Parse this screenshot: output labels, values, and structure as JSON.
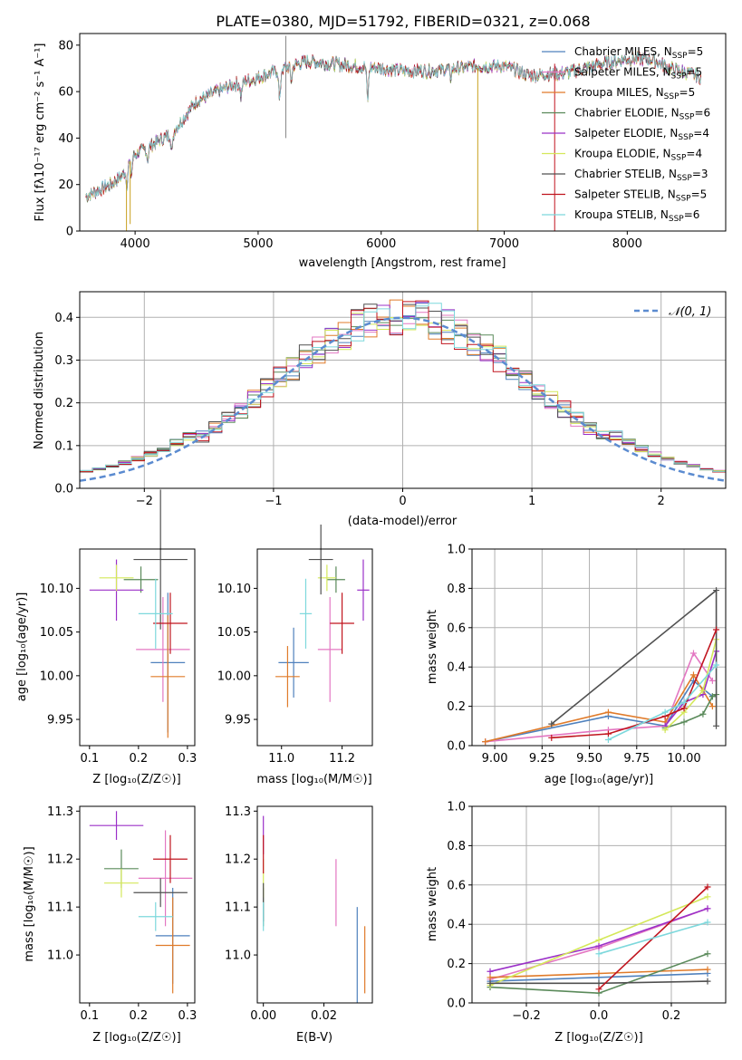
{
  "colors": {
    "chabrier_miles": "#4f81bd",
    "salpeter_miles": "#e377c2",
    "kroupa_miles": "#e07b2a",
    "chabrier_elodie": "#5a8a5a",
    "salpeter_elodie": "#9b30c8",
    "kroupa_elodie": "#d4e85a",
    "chabrier_stelib": "#505050",
    "salpeter_stelib": "#c0141e",
    "kroupa_stelib": "#7dd8dc",
    "normal": "#5b8bd0"
  },
  "chart_data": [
    {
      "id": "spectrum",
      "type": "line",
      "title": "PLATE=0380, MJD=51792, FIBERID=0321, z=0.068",
      "xlabel": "wavelength [Angstrom, rest frame]",
      "ylabel": "Flux [fλ10⁻¹⁷ erg cm⁻² s⁻¹ A⁻¹]",
      "xlim": [
        3550,
        8800
      ],
      "ylim": [
        0,
        85
      ],
      "xticks": [
        4000,
        5000,
        6000,
        7000,
        8000
      ],
      "yticks": [
        0,
        20,
        40,
        60,
        80
      ],
      "continuum": [
        [
          3600,
          15
        ],
        [
          3800,
          20
        ],
        [
          3900,
          24
        ],
        [
          3950,
          30
        ],
        [
          4000,
          33
        ],
        [
          4100,
          36
        ],
        [
          4300,
          42
        ],
        [
          4500,
          56
        ],
        [
          4800,
          63
        ],
        [
          5000,
          66
        ],
        [
          5200,
          70
        ],
        [
          5400,
          73
        ],
        [
          5600,
          72
        ],
        [
          5800,
          71
        ],
        [
          6000,
          70
        ],
        [
          6200,
          69
        ],
        [
          6400,
          69
        ],
        [
          6600,
          70
        ],
        [
          6800,
          71
        ],
        [
          7000,
          71
        ],
        [
          7200,
          67
        ],
        [
          7500,
          68
        ],
        [
          7800,
          72
        ],
        [
          8000,
          74
        ],
        [
          8200,
          74
        ],
        [
          8350,
          70
        ],
        [
          8500,
          68
        ],
        [
          8600,
          66
        ]
      ],
      "legend_position": "upper right",
      "series": [
        {
          "name": "Chabrier MILES, N",
          "ssp": "5"
        },
        {
          "name": "Salpeter MILES, N",
          "ssp": "5"
        },
        {
          "name": "Kroupa MILES, N",
          "ssp": "5"
        },
        {
          "name": "Chabrier ELODIE, N",
          "ssp": "6"
        },
        {
          "name": "Salpeter ELODIE, N",
          "ssp": "4"
        },
        {
          "name": "Kroupa ELODIE, N",
          "ssp": "4"
        },
        {
          "name": "Chabrier STELIB, N",
          "ssp": "3"
        },
        {
          "name": "Salpeter STELIB, N",
          "ssp": "5"
        },
        {
          "name": "Kroupa STELIB, N",
          "ssp": "6"
        }
      ]
    },
    {
      "id": "residuals",
      "type": "line",
      "xlabel": "(data-model)/error",
      "ylabel": "Normed distribution",
      "xlim": [
        -2.5,
        2.5
      ],
      "ylim": [
        0,
        0.46
      ],
      "xticks": [
        -2,
        -1,
        0,
        1,
        2
      ],
      "yticks": [
        0.0,
        0.1,
        0.2,
        0.3,
        0.4
      ],
      "grid": true,
      "normal_label": "𝒩(0, 1)",
      "bin_width": 0.1
    },
    {
      "id": "age_vs_Z",
      "type": "scatter",
      "xlabel": "Z [log₁₀(Z/Z☉)]",
      "ylabel": "age  [log₁₀(age/yr)]",
      "xlim": [
        0.08,
        0.315
      ],
      "ylim": [
        9.92,
        10.145
      ],
      "xticks": [
        0.1,
        0.2,
        0.3
      ],
      "yticks": [
        9.95,
        10.0,
        10.05,
        10.1
      ],
      "points": [
        {
          "x": 0.26,
          "y": 10.015,
          "xerr": 0.035,
          "yerr": 0.08
        },
        {
          "x": 0.25,
          "y": 10.03,
          "xerr": 0.055,
          "yerr": 0.06
        },
        {
          "x": 0.26,
          "y": 9.999,
          "xerr": 0.035,
          "yerr": 0.07
        },
        {
          "x": 0.205,
          "y": 10.11,
          "xerr": 0.035,
          "yerr": 0.015
        },
        {
          "x": 0.155,
          "y": 10.098,
          "xerr": 0.055,
          "yerr": 0.035
        },
        {
          "x": 0.155,
          "y": 10.112,
          "xerr": 0.035,
          "yerr": 0.015
        },
        {
          "x": 0.245,
          "y": 10.133,
          "xerr": 0.055,
          "yerr": 0.08
        },
        {
          "x": 0.265,
          "y": 10.06,
          "xerr": 0.035,
          "yerr": 0.035
        },
        {
          "x": 0.235,
          "y": 10.071,
          "xerr": 0.035,
          "yerr": 0.04
        }
      ]
    },
    {
      "id": "age_vs_mass",
      "type": "scatter",
      "xlabel": "mass [log₁₀(M/M☉)]",
      "ylabel": "",
      "xlim": [
        10.92,
        11.3
      ],
      "ylim": [
        9.92,
        10.145
      ],
      "xticks": [
        11.0,
        11.2
      ],
      "yticks": [
        9.95,
        10.0,
        10.05,
        10.1
      ],
      "points": [
        {
          "x": 11.04,
          "y": 10.015,
          "xerr": 0.05,
          "yerr": 0.04
        },
        {
          "x": 11.16,
          "y": 10.03,
          "xerr": 0.04,
          "yerr": 0.06
        },
        {
          "x": 11.02,
          "y": 9.999,
          "xerr": 0.04,
          "yerr": 0.035
        },
        {
          "x": 11.18,
          "y": 10.11,
          "xerr": 0.03,
          "yerr": 0.015
        },
        {
          "x": 11.27,
          "y": 10.098,
          "xerr": 0.02,
          "yerr": 0.035
        },
        {
          "x": 11.15,
          "y": 10.112,
          "xerr": 0.03,
          "yerr": 0.015
        },
        {
          "x": 11.13,
          "y": 10.133,
          "xerr": 0.04,
          "yerr": 0.04
        },
        {
          "x": 11.2,
          "y": 10.06,
          "xerr": 0.04,
          "yerr": 0.035
        },
        {
          "x": 11.08,
          "y": 10.071,
          "xerr": 0.02,
          "yerr": 0.04
        }
      ]
    },
    {
      "id": "weight_vs_age",
      "type": "line",
      "xlabel": "age  [log₁₀(age/yr)]",
      "ylabel": "mass weight",
      "xlim": [
        8.88,
        10.22
      ],
      "ylim": [
        0,
        1
      ],
      "xticks": [
        9.0,
        9.25,
        9.5,
        9.75,
        10.0
      ],
      "yticks": [
        0.0,
        0.2,
        0.4,
        0.6,
        0.8,
        1.0
      ],
      "grid": true,
      "series": [
        {
          "x": [
            8.95,
            9.6,
            9.9,
            10.05,
            10.15
          ],
          "y": [
            0.02,
            0.15,
            0.1,
            0.33,
            0.25
          ]
        },
        {
          "x": [
            8.95,
            9.6,
            9.9,
            10.05,
            10.15
          ],
          "y": [
            0.02,
            0.08,
            0.1,
            0.47,
            0.33
          ]
        },
        {
          "x": [
            8.95,
            9.6,
            9.9,
            10.05,
            10.15
          ],
          "y": [
            0.02,
            0.17,
            0.12,
            0.36,
            0.2
          ]
        },
        {
          "x": [
            9.9,
            10.0,
            10.1,
            10.15,
            10.17
          ],
          "y": [
            0.09,
            0.12,
            0.16,
            0.25,
            0.26
          ]
        },
        {
          "x": [
            9.9,
            10.0,
            10.1,
            10.17
          ],
          "y": [
            0.1,
            0.22,
            0.26,
            0.48
          ]
        },
        {
          "x": [
            9.9,
            10.0,
            10.1,
            10.17
          ],
          "y": [
            0.08,
            0.17,
            0.28,
            0.54
          ]
        },
        {
          "x": [
            9.3,
            10.17,
            10.17
          ],
          "y": [
            0.11,
            0.79,
            0.1
          ]
        },
        {
          "x": [
            9.3,
            9.6,
            9.9,
            10.0,
            10.17
          ],
          "y": [
            0.04,
            0.06,
            0.15,
            0.19,
            0.59
          ]
        },
        {
          "x": [
            9.6,
            9.9,
            10.0,
            10.17
          ],
          "y": [
            0.03,
            0.17,
            0.22,
            0.41
          ]
        }
      ]
    },
    {
      "id": "mass_vs_Z",
      "type": "scatter",
      "xlabel": "Z [log₁₀(Z/Z☉)]",
      "ylabel": "mass [log₁₀(M/M☉)]",
      "xlim": [
        0.08,
        0.315
      ],
      "ylim": [
        10.9,
        11.31
      ],
      "xticks": [
        0.1,
        0.2,
        0.3
      ],
      "yticks": [
        11.0,
        11.1,
        11.2,
        11.3
      ],
      "points": [
        {
          "x": 0.27,
          "y": 11.04,
          "xerr": 0.035,
          "yerr": 0.1
        },
        {
          "x": 0.255,
          "y": 11.16,
          "xerr": 0.055,
          "yerr": 0.1
        },
        {
          "x": 0.27,
          "y": 11.02,
          "xerr": 0.035,
          "yerr": 0.1
        },
        {
          "x": 0.165,
          "y": 11.18,
          "xerr": 0.035,
          "yerr": 0.04
        },
        {
          "x": 0.155,
          "y": 11.27,
          "xerr": 0.055,
          "yerr": 0.03
        },
        {
          "x": 0.165,
          "y": 11.15,
          "xerr": 0.035,
          "yerr": 0.03
        },
        {
          "x": 0.245,
          "y": 11.13,
          "xerr": 0.055,
          "yerr": 0.03
        },
        {
          "x": 0.265,
          "y": 11.2,
          "xerr": 0.035,
          "yerr": 0.05
        },
        {
          "x": 0.235,
          "y": 11.08,
          "xerr": 0.035,
          "yerr": 0.03
        }
      ]
    },
    {
      "id": "mass_vs_ebv",
      "type": "scatter",
      "xlabel": "E(B-V)",
      "ylabel": "",
      "xlim": [
        -0.002,
        0.036
      ],
      "ylim": [
        10.9,
        11.31
      ],
      "xticks": [
        0.0,
        0.02
      ],
      "yticks": [
        11.0,
        11.1,
        11.2,
        11.3
      ],
      "points": [
        {
          "x": 0.031,
          "y": 11.0,
          "xerr": 0.0,
          "yerr": 0.1
        },
        {
          "x": 0.024,
          "y": 11.13,
          "xerr": 0.0,
          "yerr": 0.07
        },
        {
          "x": 0.0335,
          "y": 10.99,
          "xerr": 0.0,
          "yerr": 0.07
        },
        {
          "x": 0.0,
          "y": 11.1,
          "xerr": 0.0,
          "yerr": 0.04
        },
        {
          "x": 0.0,
          "y": 11.25,
          "xerr": 0.0,
          "yerr": 0.04
        },
        {
          "x": 0.0,
          "y": 11.16,
          "xerr": 0.0,
          "yerr": 0.04
        },
        {
          "x": 0.0,
          "y": 11.11,
          "xerr": 0.0,
          "yerr": 0.04
        },
        {
          "x": 0.0,
          "y": 11.21,
          "xerr": 0.0,
          "yerr": 0.04
        },
        {
          "x": 0.0,
          "y": 11.08,
          "xerr": 0.0,
          "yerr": 0.03
        }
      ]
    },
    {
      "id": "weight_vs_Z",
      "type": "line",
      "xlabel": "Z [log₁₀(Z/Z☉)]",
      "ylabel": "mass weight",
      "xlim": [
        -0.35,
        0.35
      ],
      "ylim": [
        0,
        1
      ],
      "xticks": [
        -0.2,
        0.0,
        0.2
      ],
      "yticks": [
        0.0,
        0.2,
        0.4,
        0.6,
        0.8,
        1.0
      ],
      "grid": true,
      "series": [
        {
          "x": [
            -0.3,
            0.0,
            0.3
          ],
          "y": [
            0.11,
            0.13,
            0.15
          ]
        },
        {
          "x": [
            -0.3,
            0.0,
            0.3
          ],
          "y": [
            0.12,
            0.28,
            0.48
          ]
        },
        {
          "x": [
            -0.3,
            0.0,
            0.3
          ],
          "y": [
            0.13,
            0.15,
            0.17
          ]
        },
        {
          "x": [
            -0.3,
            0.0,
            0.3
          ],
          "y": [
            0.08,
            0.05,
            0.25
          ]
        },
        {
          "x": [
            -0.3,
            0.0,
            0.3
          ],
          "y": [
            0.16,
            0.29,
            0.48
          ]
        },
        {
          "x": [
            -0.3,
            0.0,
            0.3
          ],
          "y": [
            0.09,
            0.32,
            0.54
          ]
        },
        {
          "x": [
            -0.3,
            0.0,
            0.3
          ],
          "y": [
            0.1,
            0.1,
            0.11
          ]
        },
        {
          "x": [
            0.0,
            0.3
          ],
          "y": [
            0.07,
            0.59
          ]
        },
        {
          "x": [
            0.0,
            0.3
          ],
          "y": [
            0.25,
            0.41
          ]
        }
      ]
    }
  ]
}
